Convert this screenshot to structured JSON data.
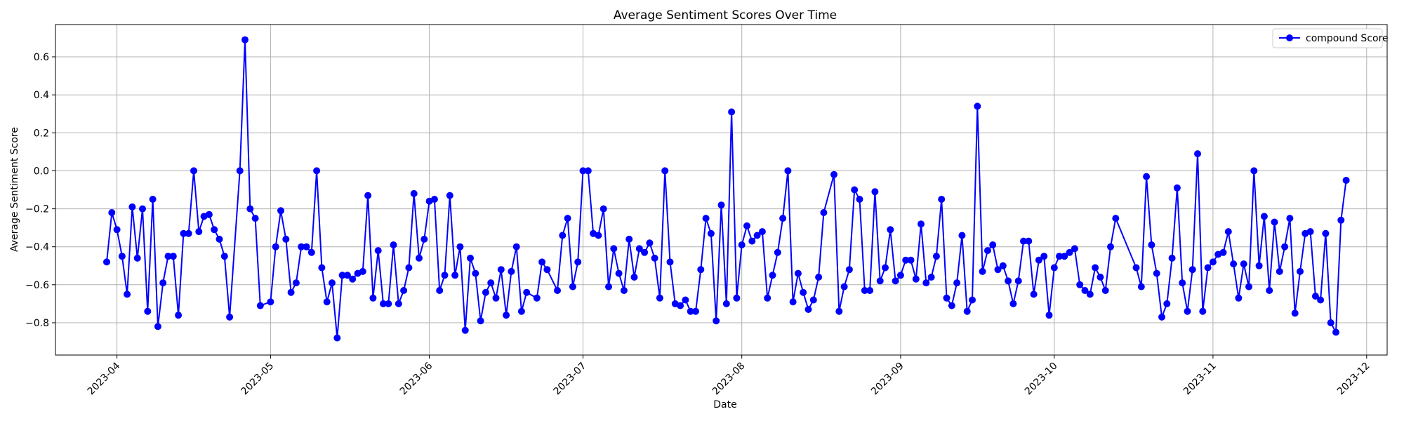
{
  "chart_data": {
    "type": "line",
    "title": "Average Sentiment Scores Over Time",
    "xlabel": "Date",
    "ylabel": "Average Sentiment Score",
    "xlim": [
      "2023-03-20",
      "2023-12-05"
    ],
    "ylim": [
      -0.97,
      0.77
    ],
    "x_ticks": [
      "2023-04-01",
      "2023-05-01",
      "2023-06-01",
      "2023-07-01",
      "2023-08-01",
      "2023-09-01",
      "2023-10-01",
      "2023-11-01",
      "2023-12-01"
    ],
    "x_tick_labels": [
      "2023-04",
      "2023-05",
      "2023-06",
      "2023-07",
      "2023-08",
      "2023-09",
      "2023-10",
      "2023-11",
      "2023-12"
    ],
    "y_ticks": [
      -0.8,
      -0.6,
      -0.4,
      -0.2,
      0.0,
      0.2,
      0.4,
      0.6
    ],
    "y_tick_labels": [
      "−0.8",
      "−0.6",
      "−0.4",
      "−0.2",
      "0.0",
      "0.2",
      "0.4",
      "0.6"
    ],
    "grid": true,
    "legend_position": "top-right",
    "series": [
      {
        "name": "compound Score",
        "color": "#0000ff",
        "marker": "circle",
        "points": [
          [
            "2023-03-30",
            -0.48
          ],
          [
            "2023-03-31",
            -0.22
          ],
          [
            "2023-04-01",
            -0.31
          ],
          [
            "2023-04-02",
            -0.45
          ],
          [
            "2023-04-03",
            -0.65
          ],
          [
            "2023-04-04",
            -0.19
          ],
          [
            "2023-04-05",
            -0.46
          ],
          [
            "2023-04-06",
            -0.2
          ],
          [
            "2023-04-07",
            -0.74
          ],
          [
            "2023-04-08",
            -0.15
          ],
          [
            "2023-04-09",
            -0.82
          ],
          [
            "2023-04-10",
            -0.59
          ],
          [
            "2023-04-11",
            -0.45
          ],
          [
            "2023-04-12",
            -0.45
          ],
          [
            "2023-04-13",
            -0.76
          ],
          [
            "2023-04-14",
            -0.33
          ],
          [
            "2023-04-15",
            -0.33
          ],
          [
            "2023-04-16",
            0.0
          ],
          [
            "2023-04-17",
            -0.32
          ],
          [
            "2023-04-18",
            -0.24
          ],
          [
            "2023-04-19",
            -0.23
          ],
          [
            "2023-04-20",
            -0.31
          ],
          [
            "2023-04-21",
            -0.36
          ],
          [
            "2023-04-22",
            -0.45
          ],
          [
            "2023-04-23",
            -0.77
          ],
          [
            "2023-04-25",
            0.0
          ],
          [
            "2023-04-26",
            0.69
          ],
          [
            "2023-04-27",
            -0.2
          ],
          [
            "2023-04-28",
            -0.25
          ],
          [
            "2023-04-29",
            -0.71
          ],
          [
            "2023-05-01",
            -0.69
          ],
          [
            "2023-05-02",
            -0.4
          ],
          [
            "2023-05-03",
            -0.21
          ],
          [
            "2023-05-04",
            -0.36
          ],
          [
            "2023-05-05",
            -0.64
          ],
          [
            "2023-05-06",
            -0.59
          ],
          [
            "2023-05-07",
            -0.4
          ],
          [
            "2023-05-08",
            -0.4
          ],
          [
            "2023-05-09",
            -0.43
          ],
          [
            "2023-05-10",
            0.0
          ],
          [
            "2023-05-11",
            -0.51
          ],
          [
            "2023-05-12",
            -0.69
          ],
          [
            "2023-05-13",
            -0.59
          ],
          [
            "2023-05-14",
            -0.88
          ],
          [
            "2023-05-15",
            -0.55
          ],
          [
            "2023-05-16",
            -0.55
          ],
          [
            "2023-05-17",
            -0.57
          ],
          [
            "2023-05-18",
            -0.54
          ],
          [
            "2023-05-19",
            -0.53
          ],
          [
            "2023-05-20",
            -0.13
          ],
          [
            "2023-05-21",
            -0.67
          ],
          [
            "2023-05-22",
            -0.42
          ],
          [
            "2023-05-23",
            -0.7
          ],
          [
            "2023-05-24",
            -0.7
          ],
          [
            "2023-05-25",
            -0.39
          ],
          [
            "2023-05-26",
            -0.7
          ],
          [
            "2023-05-27",
            -0.63
          ],
          [
            "2023-05-28",
            -0.51
          ],
          [
            "2023-05-29",
            -0.12
          ],
          [
            "2023-05-30",
            -0.46
          ],
          [
            "2023-05-31",
            -0.36
          ],
          [
            "2023-06-01",
            -0.16
          ],
          [
            "2023-06-02",
            -0.15
          ],
          [
            "2023-06-03",
            -0.63
          ],
          [
            "2023-06-04",
            -0.55
          ],
          [
            "2023-06-05",
            -0.13
          ],
          [
            "2023-06-06",
            -0.55
          ],
          [
            "2023-06-07",
            -0.4
          ],
          [
            "2023-06-08",
            -0.84
          ],
          [
            "2023-06-09",
            -0.46
          ],
          [
            "2023-06-10",
            -0.54
          ],
          [
            "2023-06-11",
            -0.79
          ],
          [
            "2023-06-12",
            -0.64
          ],
          [
            "2023-06-13",
            -0.59
          ],
          [
            "2023-06-14",
            -0.67
          ],
          [
            "2023-06-15",
            -0.52
          ],
          [
            "2023-06-16",
            -0.76
          ],
          [
            "2023-06-17",
            -0.53
          ],
          [
            "2023-06-18",
            -0.4
          ],
          [
            "2023-06-19",
            -0.74
          ],
          [
            "2023-06-20",
            -0.64
          ],
          [
            "2023-06-22",
            -0.67
          ],
          [
            "2023-06-23",
            -0.48
          ],
          [
            "2023-06-24",
            -0.52
          ],
          [
            "2023-06-26",
            -0.63
          ],
          [
            "2023-06-27",
            -0.34
          ],
          [
            "2023-06-28",
            -0.25
          ],
          [
            "2023-06-29",
            -0.61
          ],
          [
            "2023-06-30",
            -0.48
          ],
          [
            "2023-07-01",
            0.0
          ],
          [
            "2023-07-02",
            0.0
          ],
          [
            "2023-07-03",
            -0.33
          ],
          [
            "2023-07-04",
            -0.34
          ],
          [
            "2023-07-05",
            -0.2
          ],
          [
            "2023-07-06",
            -0.61
          ],
          [
            "2023-07-07",
            -0.41
          ],
          [
            "2023-07-08",
            -0.54
          ],
          [
            "2023-07-09",
            -0.63
          ],
          [
            "2023-07-10",
            -0.36
          ],
          [
            "2023-07-11",
            -0.56
          ],
          [
            "2023-07-12",
            -0.41
          ],
          [
            "2023-07-13",
            -0.43
          ],
          [
            "2023-07-14",
            -0.38
          ],
          [
            "2023-07-15",
            -0.46
          ],
          [
            "2023-07-16",
            -0.67
          ],
          [
            "2023-07-17",
            0.0
          ],
          [
            "2023-07-18",
            -0.48
          ],
          [
            "2023-07-19",
            -0.7
          ],
          [
            "2023-07-20",
            -0.71
          ],
          [
            "2023-07-21",
            -0.68
          ],
          [
            "2023-07-22",
            -0.74
          ],
          [
            "2023-07-23",
            -0.74
          ],
          [
            "2023-07-24",
            -0.52
          ],
          [
            "2023-07-25",
            -0.25
          ],
          [
            "2023-07-26",
            -0.33
          ],
          [
            "2023-07-27",
            -0.79
          ],
          [
            "2023-07-28",
            -0.18
          ],
          [
            "2023-07-29",
            -0.7
          ],
          [
            "2023-07-30",
            0.31
          ],
          [
            "2023-07-31",
            -0.67
          ],
          [
            "2023-08-01",
            -0.39
          ],
          [
            "2023-08-02",
            -0.29
          ],
          [
            "2023-08-03",
            -0.37
          ],
          [
            "2023-08-04",
            -0.34
          ],
          [
            "2023-08-05",
            -0.32
          ],
          [
            "2023-08-06",
            -0.67
          ],
          [
            "2023-08-07",
            -0.55
          ],
          [
            "2023-08-08",
            -0.43
          ],
          [
            "2023-08-09",
            -0.25
          ],
          [
            "2023-08-10",
            0.0
          ],
          [
            "2023-08-11",
            -0.69
          ],
          [
            "2023-08-12",
            -0.54
          ],
          [
            "2023-08-13",
            -0.64
          ],
          [
            "2023-08-14",
            -0.73
          ],
          [
            "2023-08-15",
            -0.68
          ],
          [
            "2023-08-16",
            -0.56
          ],
          [
            "2023-08-17",
            -0.22
          ],
          [
            "2023-08-19",
            -0.02
          ],
          [
            "2023-08-20",
            -0.74
          ],
          [
            "2023-08-21",
            -0.61
          ],
          [
            "2023-08-22",
            -0.52
          ],
          [
            "2023-08-23",
            -0.1
          ],
          [
            "2023-08-24",
            -0.15
          ],
          [
            "2023-08-25",
            -0.63
          ],
          [
            "2023-08-26",
            -0.63
          ],
          [
            "2023-08-27",
            -0.11
          ],
          [
            "2023-08-28",
            -0.58
          ],
          [
            "2023-08-29",
            -0.51
          ],
          [
            "2023-08-30",
            -0.31
          ],
          [
            "2023-08-31",
            -0.58
          ],
          [
            "2023-09-01",
            -0.55
          ],
          [
            "2023-09-02",
            -0.47
          ],
          [
            "2023-09-03",
            -0.47
          ],
          [
            "2023-09-04",
            -0.57
          ],
          [
            "2023-09-05",
            -0.28
          ],
          [
            "2023-09-06",
            -0.59
          ],
          [
            "2023-09-07",
            -0.56
          ],
          [
            "2023-09-08",
            -0.45
          ],
          [
            "2023-09-09",
            -0.15
          ],
          [
            "2023-09-10",
            -0.67
          ],
          [
            "2023-09-11",
            -0.71
          ],
          [
            "2023-09-12",
            -0.59
          ],
          [
            "2023-09-13",
            -0.34
          ],
          [
            "2023-09-14",
            -0.74
          ],
          [
            "2023-09-15",
            -0.68
          ],
          [
            "2023-09-16",
            0.34
          ],
          [
            "2023-09-17",
            -0.53
          ],
          [
            "2023-09-18",
            -0.42
          ],
          [
            "2023-09-19",
            -0.39
          ],
          [
            "2023-09-20",
            -0.52
          ],
          [
            "2023-09-21",
            -0.5
          ],
          [
            "2023-09-22",
            -0.58
          ],
          [
            "2023-09-23",
            -0.7
          ],
          [
            "2023-09-24",
            -0.58
          ],
          [
            "2023-09-25",
            -0.37
          ],
          [
            "2023-09-26",
            -0.37
          ],
          [
            "2023-09-27",
            -0.65
          ],
          [
            "2023-09-28",
            -0.47
          ],
          [
            "2023-09-29",
            -0.45
          ],
          [
            "2023-09-30",
            -0.76
          ],
          [
            "2023-10-01",
            -0.51
          ],
          [
            "2023-10-02",
            -0.45
          ],
          [
            "2023-10-03",
            -0.45
          ],
          [
            "2023-10-04",
            -0.43
          ],
          [
            "2023-10-05",
            -0.41
          ],
          [
            "2023-10-06",
            -0.6
          ],
          [
            "2023-10-07",
            -0.63
          ],
          [
            "2023-10-08",
            -0.65
          ],
          [
            "2023-10-09",
            -0.51
          ],
          [
            "2023-10-10",
            -0.56
          ],
          [
            "2023-10-11",
            -0.63
          ],
          [
            "2023-10-12",
            -0.4
          ],
          [
            "2023-10-13",
            -0.25
          ],
          [
            "2023-10-17",
            -0.51
          ],
          [
            "2023-10-18",
            -0.61
          ],
          [
            "2023-10-19",
            -0.03
          ],
          [
            "2023-10-20",
            -0.39
          ],
          [
            "2023-10-21",
            -0.54
          ],
          [
            "2023-10-22",
            -0.77
          ],
          [
            "2023-10-23",
            -0.7
          ],
          [
            "2023-10-24",
            -0.46
          ],
          [
            "2023-10-25",
            -0.09
          ],
          [
            "2023-10-26",
            -0.59
          ],
          [
            "2023-10-27",
            -0.74
          ],
          [
            "2023-10-28",
            -0.52
          ],
          [
            "2023-10-29",
            0.09
          ],
          [
            "2023-10-30",
            -0.74
          ],
          [
            "2023-10-31",
            -0.51
          ],
          [
            "2023-11-01",
            -0.48
          ],
          [
            "2023-11-02",
            -0.44
          ],
          [
            "2023-11-03",
            -0.43
          ],
          [
            "2023-11-04",
            -0.32
          ],
          [
            "2023-11-05",
            -0.49
          ],
          [
            "2023-11-06",
            -0.67
          ],
          [
            "2023-11-07",
            -0.49
          ],
          [
            "2023-11-08",
            -0.61
          ],
          [
            "2023-11-09",
            0.0
          ],
          [
            "2023-11-10",
            -0.5
          ],
          [
            "2023-11-11",
            -0.24
          ],
          [
            "2023-11-12",
            -0.63
          ],
          [
            "2023-11-13",
            -0.27
          ],
          [
            "2023-11-14",
            -0.53
          ],
          [
            "2023-11-15",
            -0.4
          ],
          [
            "2023-11-16",
            -0.25
          ],
          [
            "2023-11-17",
            -0.75
          ],
          [
            "2023-11-18",
            -0.53
          ],
          [
            "2023-11-19",
            -0.33
          ],
          [
            "2023-11-20",
            -0.32
          ],
          [
            "2023-11-21",
            -0.66
          ],
          [
            "2023-11-22",
            -0.68
          ],
          [
            "2023-11-23",
            -0.33
          ],
          [
            "2023-11-24",
            -0.8
          ],
          [
            "2023-11-25",
            -0.85
          ],
          [
            "2023-11-26",
            -0.26
          ],
          [
            "2023-11-27",
            -0.05
          ]
        ]
      }
    ]
  }
}
